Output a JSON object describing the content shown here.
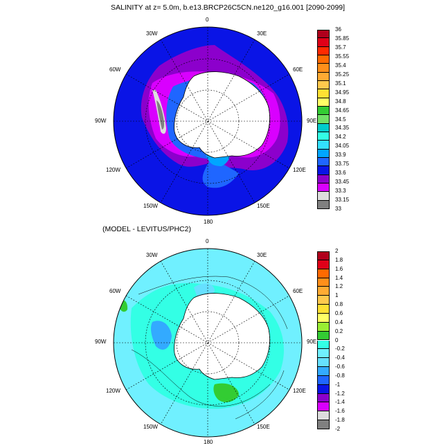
{
  "top_panel": {
    "title": "SALINITY at z=   5.0m, b.e13.BRCP26C5CN.ne120_g16.001 [2090-2099]",
    "lon_labels": [
      "0",
      "30E",
      "60E",
      "90E",
      "120E",
      "150E",
      "180",
      "150W",
      "120W",
      "90W",
      "60W",
      "30W"
    ],
    "colorbar": {
      "labels": [
        "36",
        "35.85",
        "35.7",
        "35.55",
        "35.4",
        "35.25",
        "35.1",
        "34.95",
        "34.8",
        "34.65",
        "34.5",
        "34.35",
        "34.2",
        "34.05",
        "33.9",
        "33.75",
        "33.6",
        "33.45",
        "33.3",
        "33.15",
        "33"
      ],
      "colors": [
        "#b0001c",
        "#e00018",
        "#ff2a00",
        "#ff6a00",
        "#ff8f1a",
        "#ffab33",
        "#ffc94d",
        "#ffe033",
        "#ffff66",
        "#33cc33",
        "#70e066",
        "#00cccc",
        "#33ffe5",
        "#33e0ff",
        "#00a6ff",
        "#1f66ff",
        "#0a14e6",
        "#8c00cc",
        "#d900ff",
        "#dddddd",
        "#808080"
      ]
    },
    "field_colors": {
      "open_ocean": "#0a14e6",
      "shelf_low": "#8c00cc",
      "shelf_lower": "#d900ff",
      "coastal": "#1f66ff",
      "coastal_light": "#00a6ff",
      "fresh_patch": "#808080",
      "fresh_patch_light": "#dddddd",
      "land": "#ffffff"
    }
  },
  "bottom_panel": {
    "title": "(MODEL - LEVITUS/PHC2)",
    "lon_labels": [
      "0",
      "30E",
      "60E",
      "90E",
      "120E",
      "150E",
      "180",
      "150W",
      "120W",
      "90W",
      "60W",
      "30W"
    ],
    "colorbar": {
      "labels": [
        "2",
        "1.8",
        "1.6",
        "1.4",
        "1.2",
        "1",
        "0.8",
        "0.6",
        "0.4",
        "0.2",
        "0",
        "-0.2",
        "-0.4",
        "-0.6",
        "-0.8",
        "-1",
        "-1.2",
        "-1.4",
        "-1.6",
        "-1.8",
        "-2"
      ],
      "colors": [
        "#b0001c",
        "#e00018",
        "#ff6a00",
        "#ff8f1a",
        "#ffab33",
        "#ffc94d",
        "#ffe033",
        "#ffff66",
        "#99ee33",
        "#33cc33",
        "#33ffe5",
        "#70f0ff",
        "#66e0ff",
        "#33aaff",
        "#1f66ff",
        "#0a14e6",
        "#8c00cc",
        "#d900ff",
        "#dddddd",
        "#808080"
      ]
    },
    "field_colors": {
      "background": "#70f0ff",
      "mid": "#33ffe5",
      "neg": "#66e0ff",
      "more_neg": "#33aaff",
      "pos": "#33cc33",
      "land": "#ffffff"
    }
  }
}
